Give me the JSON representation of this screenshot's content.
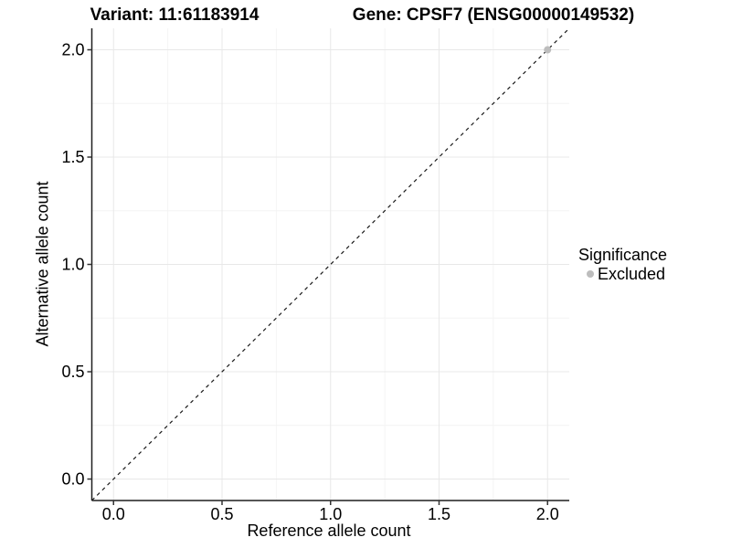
{
  "colors": {
    "background": "#ffffff",
    "axis_line": "#1f1f1f",
    "tick_mark": "#333333",
    "text": "#000000"
  },
  "chart_data": {
    "type": "scatter",
    "titles": {
      "variant": "Variant: 11:61183914",
      "gene": "Gene: CPSF7 (ENSG00000149532)"
    },
    "xlabel": "Reference allele count",
    "ylabel": "Alternative allele count",
    "xlim": [
      -0.1,
      2.1
    ],
    "ylim": [
      -0.1,
      2.1
    ],
    "x_ticks": [
      0.0,
      0.5,
      1.0,
      1.5,
      2.0
    ],
    "x_tick_labels": [
      "0.0",
      "0.5",
      "1.0",
      "1.5",
      "2.0"
    ],
    "y_ticks": [
      0.0,
      0.5,
      1.0,
      1.5,
      2.0
    ],
    "y_tick_labels": [
      "0.0",
      "0.5",
      "1.0",
      "1.5",
      "2.0"
    ],
    "grid": {
      "show_major": true,
      "show_minor": true,
      "major_color": "#e8e8e8",
      "minor_color": "#f4f4f4"
    },
    "identity_line": {
      "style": "dashed",
      "color": "#1a1a1a",
      "from": [
        -0.1,
        -0.1
      ],
      "to": [
        2.1,
        2.1
      ]
    },
    "points": [
      {
        "x": 2.0,
        "y": 2.0,
        "significance": "Excluded",
        "color": "#bdbdbd"
      }
    ],
    "legend": {
      "title": "Significance",
      "position": "right",
      "items": [
        {
          "label": "Excluded",
          "color": "#bdbdbd"
        }
      ]
    }
  }
}
